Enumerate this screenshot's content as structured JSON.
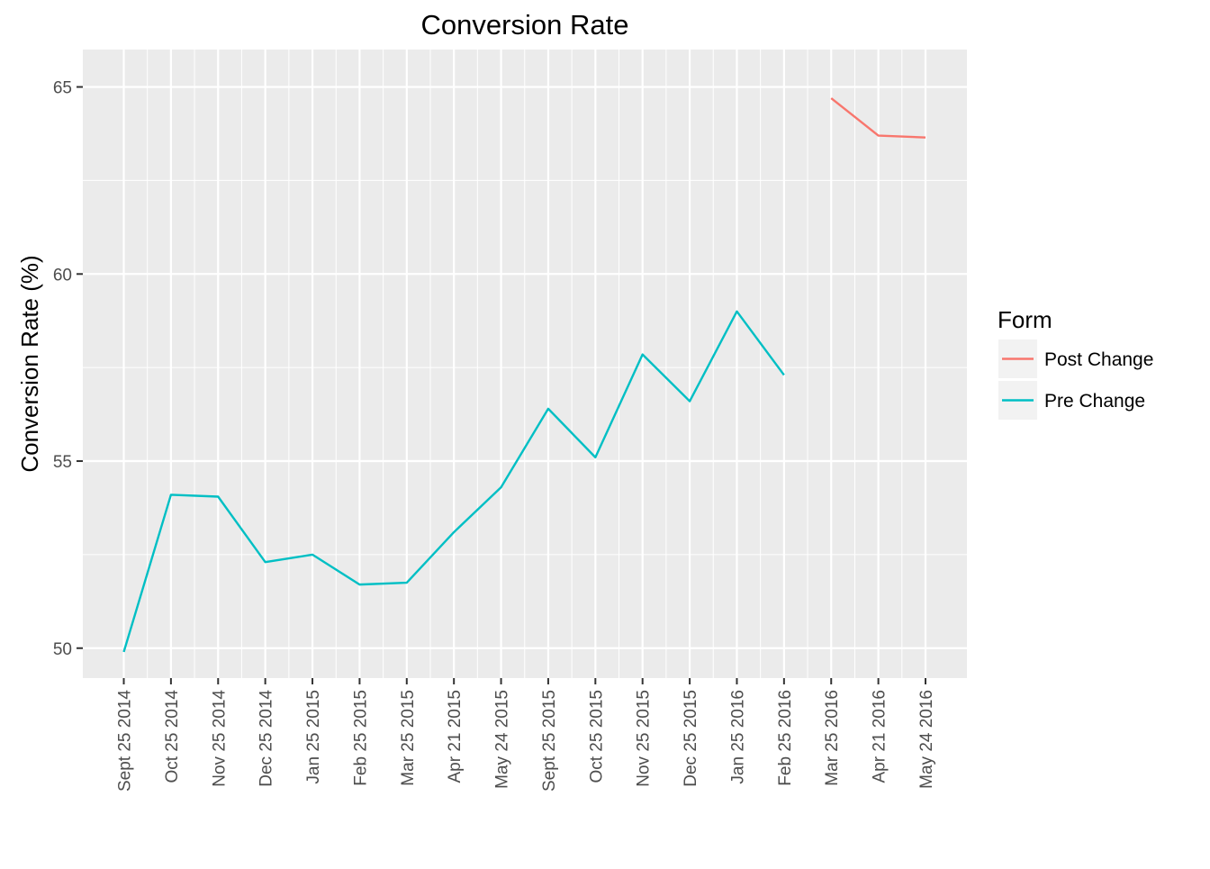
{
  "chart_data": {
    "type": "line",
    "title": "Conversion Rate",
    "xlabel": "",
    "ylabel": "Conversion Rate (%)",
    "categories": [
      "Sept 25 2014",
      "Oct 25 2014",
      "Nov 25 2014",
      "Dec 25 2014",
      "Jan 25 2015",
      "Feb 25 2015",
      "Mar 25 2015",
      "Apr 21 2015",
      "May 24 2015",
      "Sept 25 2015",
      "Oct 25 2015",
      "Nov 25 2015",
      "Dec 25 2015",
      "Jan 25 2016",
      "Feb 25 2016",
      "Mar 25 2016",
      "Apr 21 2016",
      "May 24 2016"
    ],
    "ylim": [
      49.2,
      66.0
    ],
    "yticks": [
      50,
      55,
      60,
      65
    ],
    "grid": true,
    "legend_position": "right",
    "legend_title": "Form",
    "series": [
      {
        "name": "Post Change",
        "color": "#F8766D",
        "points": [
          {
            "x": "Mar 25 2016",
            "y": 64.7
          },
          {
            "x": "Apr 21 2016",
            "y": 63.7
          },
          {
            "x": "May 24 2016",
            "y": 63.65
          }
        ]
      },
      {
        "name": "Pre Change",
        "color": "#00BFC4",
        "points": [
          {
            "x": "Sept 25 2014",
            "y": 49.9
          },
          {
            "x": "Oct 25 2014",
            "y": 54.1
          },
          {
            "x": "Nov 25 2014",
            "y": 54.05
          },
          {
            "x": "Dec 25 2014",
            "y": 52.3
          },
          {
            "x": "Jan 25 2015",
            "y": 52.5
          },
          {
            "x": "Feb 25 2015",
            "y": 51.7
          },
          {
            "x": "Mar 25 2015",
            "y": 51.75
          },
          {
            "x": "Apr 21 2015",
            "y": 53.1
          },
          {
            "x": "May 24 2015",
            "y": 54.3
          },
          {
            "x": "Sept 25 2015",
            "y": 56.4
          },
          {
            "x": "Oct 25 2015",
            "y": 55.1
          },
          {
            "x": "Nov 25 2015",
            "y": 57.85
          },
          {
            "x": "Dec 25 2015",
            "y": 56.6
          },
          {
            "x": "Jan 25 2016",
            "y": 59.0
          },
          {
            "x": "Feb 25 2016",
            "y": 57.3
          }
        ]
      }
    ]
  }
}
